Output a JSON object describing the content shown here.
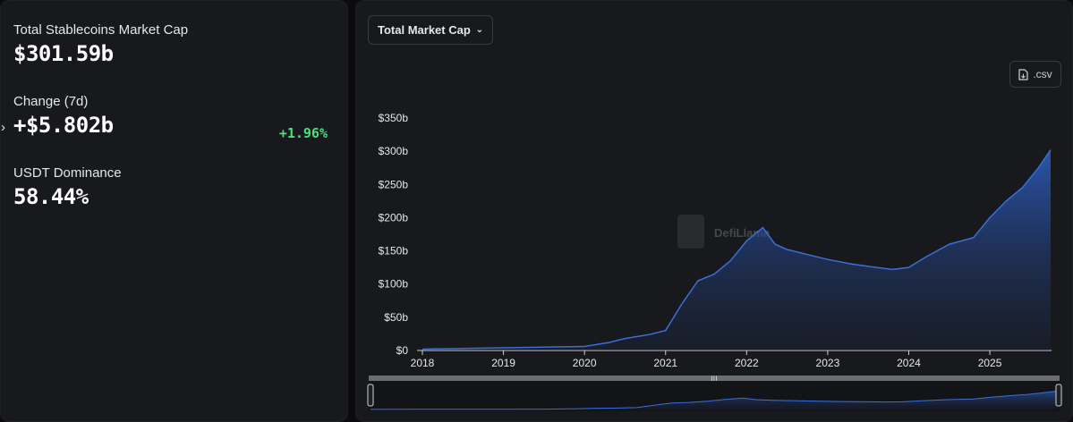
{
  "stats": {
    "total_label": "Total Stablecoins Market Cap",
    "total_value": "$301.59b",
    "change_label": "Change (7d)",
    "change_value": "+$5.802b",
    "change_pct": "+1.96%",
    "dominance_label": "USDT Dominance",
    "dominance_value": "58.44%"
  },
  "controls": {
    "metric_select": "Total Market Cap",
    "csv_label": ".csv"
  },
  "watermark": "DefiLlama",
  "colors": {
    "accent": "#3b6fd6",
    "positive": "#4ade80"
  },
  "chart_data": {
    "type": "area",
    "title": "",
    "xlabel": "",
    "ylabel": "",
    "ylim": [
      0,
      350
    ],
    "y_ticks": [
      "$0",
      "$50b",
      "$100b",
      "$150b",
      "$200b",
      "$250b",
      "$300b",
      "$350b"
    ],
    "x_ticks": [
      "2018",
      "2019",
      "2020",
      "2021",
      "2022",
      "2023",
      "2024",
      "2025"
    ],
    "grid": false,
    "legend": "none",
    "series": [
      {
        "x": [
          2018.0,
          2018.5,
          2019.0,
          2019.5,
          2020.0,
          2020.3,
          2020.5,
          2020.8,
          2021.0,
          2021.2,
          2021.4,
          2021.6,
          2021.8,
          2022.0,
          2022.2,
          2022.35,
          2022.5,
          2022.8,
          2023.0,
          2023.3,
          2023.6,
          2023.8,
          2024.0,
          2024.2,
          2024.5,
          2024.8,
          2025.0,
          2025.2,
          2025.4,
          2025.6,
          2025.75
        ],
        "y": [
          2,
          3,
          4,
          5,
          6,
          12,
          18,
          24,
          30,
          70,
          105,
          115,
          135,
          165,
          185,
          160,
          152,
          143,
          137,
          130,
          125,
          122,
          125,
          140,
          160,
          170,
          200,
          225,
          245,
          275,
          302
        ]
      }
    ]
  }
}
